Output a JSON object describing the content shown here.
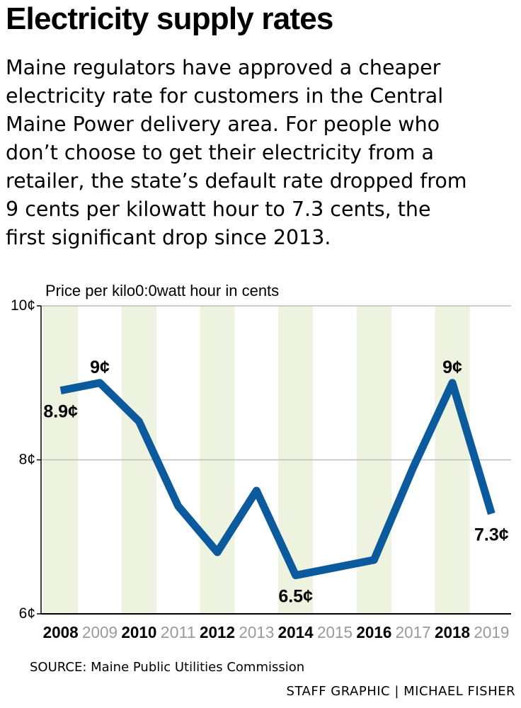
{
  "title": "Electricity supply rates",
  "deck_lines": [
    "Maine regulators have approved a cheaper",
    "electricity rate for customers in the Central",
    "Maine Power delivery area. For people who",
    "don’t choose to get their electricity from a",
    "retailer, the state’s default rate dropped from",
    "9 cents per kilowatt hour to 7.3 cents, the",
    "first significant drop since 2013."
  ],
  "source": "SOURCE: Maine Public Utilities Commission",
  "credit": "STAFF GRAPHIC | MICHAEL FISHER",
  "colors": {
    "line": "#0b5a9e",
    "stripe": "#eef3df",
    "grid": "#bdbdbd",
    "muted_year": "#9a9a9a"
  },
  "chart_data": {
    "type": "line",
    "ylabel": "Price per kilo0:0watt hour in cents",
    "ylim": [
      6,
      10
    ],
    "y_ticks": [
      {
        "value": 10,
        "label": "10¢"
      },
      {
        "value": 8,
        "label": "8¢"
      },
      {
        "value": 6,
        "label": "6¢"
      }
    ],
    "grid": true,
    "categories": [
      "2008",
      "2009",
      "2010",
      "2011",
      "2012",
      "2013",
      "2014",
      "2015",
      "2016",
      "2017",
      "2018",
      "2019"
    ],
    "bold_categories": [
      "2008",
      "2010",
      "2012",
      "2014",
      "2016",
      "2018"
    ],
    "values": [
      8.9,
      9.0,
      8.5,
      7.4,
      6.8,
      7.6,
      6.5,
      6.6,
      6.7,
      7.9,
      9.0,
      7.3
    ],
    "data_labels": [
      {
        "index": 0,
        "text": "8.9¢",
        "position": "below"
      },
      {
        "index": 1,
        "text": "9¢",
        "position": "above"
      },
      {
        "index": 6,
        "text": "6.5¢",
        "position": "below"
      },
      {
        "index": 10,
        "text": "9¢",
        "position": "above"
      },
      {
        "index": 11,
        "text": "7.3¢",
        "position": "below"
      }
    ]
  }
}
